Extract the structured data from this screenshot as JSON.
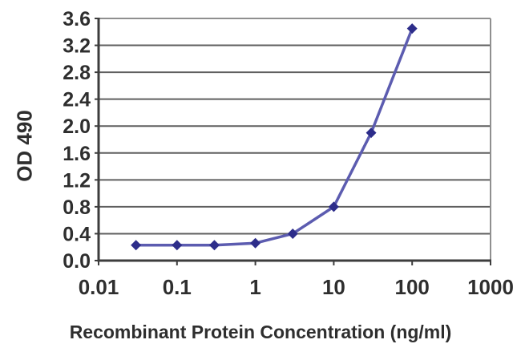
{
  "figure": {
    "background": "#ffffff"
  },
  "chart_data": {
    "type": "line",
    "title": "",
    "xlabel": "Recombinant Protein Concentration (ng/ml)",
    "ylabel": "OD 490",
    "x_scale": "log",
    "xlim": [
      0.01,
      1000
    ],
    "ylim": [
      0,
      3.6
    ],
    "x_tick_values": [
      0.01,
      0.1,
      1,
      10,
      100,
      1000
    ],
    "x_tick_labels": [
      "0.01",
      "0.1",
      "1",
      "10",
      "100",
      "1000"
    ],
    "y_tick_values": [
      0.0,
      0.4,
      0.8,
      1.2,
      1.6,
      2.0,
      2.4,
      2.8,
      3.2,
      3.6
    ],
    "y_tick_labels": [
      "0.0",
      "0.4",
      "0.8",
      "1.2",
      "1.6",
      "2.0",
      "2.4",
      "2.8",
      "3.2",
      "3.6"
    ],
    "grid": "horizontal",
    "legend": "none",
    "series": [
      {
        "name": "OD 490",
        "marker": "diamond",
        "x": [
          0.03,
          0.1,
          0.3,
          1,
          3,
          10,
          30,
          100
        ],
        "y": [
          0.23,
          0.23,
          0.23,
          0.26,
          0.4,
          0.8,
          1.9,
          3.45
        ]
      }
    ],
    "colors": {
      "line": "#5c5cb0",
      "marker": "#2d2d8a",
      "grid": "#5f5f5f",
      "axis": "#3d3d3d",
      "frame": "#8f8f8f",
      "text": "#2e2e2e"
    }
  }
}
